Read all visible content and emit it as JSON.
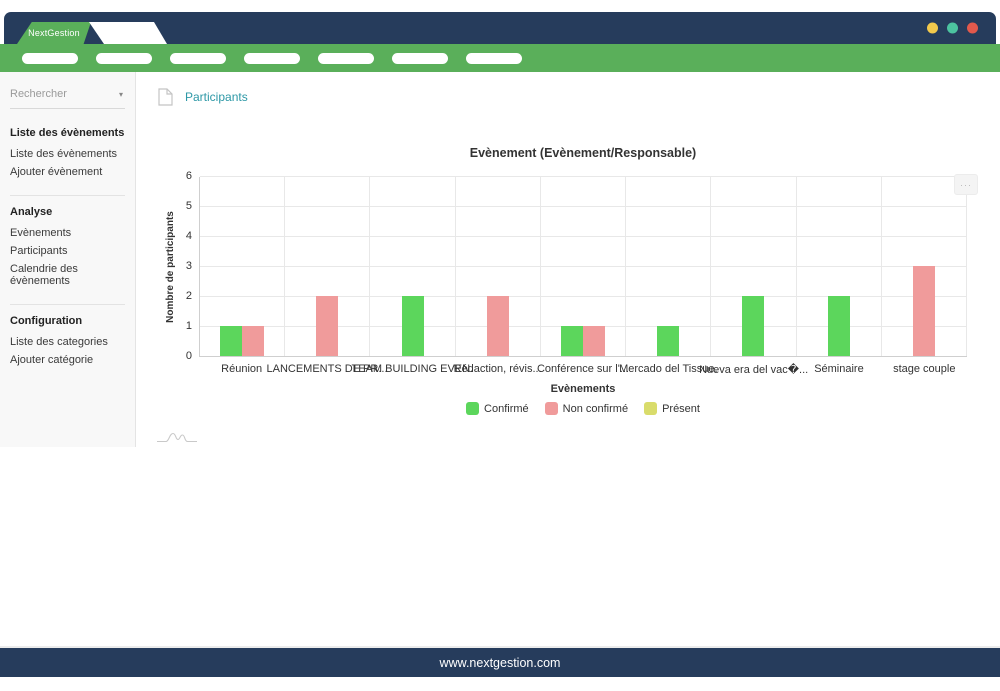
{
  "window": {
    "brand": "NextGestion",
    "footer_url": "www.nextgestion.com",
    "traffic_lights": [
      {
        "name": "minimize",
        "color": "#f2c94c"
      },
      {
        "name": "maximize",
        "color": "#4cc3a0"
      },
      {
        "name": "close",
        "color": "#e2594c"
      }
    ]
  },
  "navbar": {
    "pill_count": 7
  },
  "sidebar": {
    "search_placeholder": "Rechercher",
    "sections": [
      {
        "heading": "Liste des évènements",
        "items": [
          "Liste des évènements",
          "Ajouter évènement"
        ]
      },
      {
        "heading": "Analyse",
        "items": [
          "Evènements",
          "Participants",
          "Calendrie des évènements"
        ]
      },
      {
        "heading": "Configuration",
        "items": [
          "Liste des categories",
          "Ajouter catégorie"
        ]
      }
    ]
  },
  "main": {
    "page_title": "Participants"
  },
  "icons": {
    "chart_menu": "···",
    "search_caret": "▾"
  },
  "chart_data": {
    "type": "bar",
    "title": "Evènement (Evènement/Responsable)",
    "xlabel": "Evènements",
    "ylabel": "Nombre de participants",
    "ylim": [
      0,
      6
    ],
    "ytick_step": 1,
    "grid": true,
    "legend_position": "bottom",
    "categories": [
      "Réunion",
      "LANCEMENTS DE PR...",
      "TEAM BUILDING EVEN.",
      "Rédaction, révis...",
      "Conférence sur l'...",
      "Mercado del Tissue.",
      "Nueva era del vac�...",
      "Séminaire",
      "stage couple"
    ],
    "series": [
      {
        "name": "Confirmé",
        "color": "#5cd65c",
        "values": [
          1,
          0,
          2,
          0,
          1,
          1,
          2,
          2,
          0
        ]
      },
      {
        "name": "Non confirmé",
        "color": "#f09b9b",
        "values": [
          1,
          2,
          0,
          2,
          1,
          0,
          0,
          0,
          3
        ]
      },
      {
        "name": "Présent",
        "color": "#d9dc6b",
        "values": [
          0,
          0,
          0,
          0,
          0,
          0,
          0,
          0,
          0
        ]
      }
    ]
  }
}
